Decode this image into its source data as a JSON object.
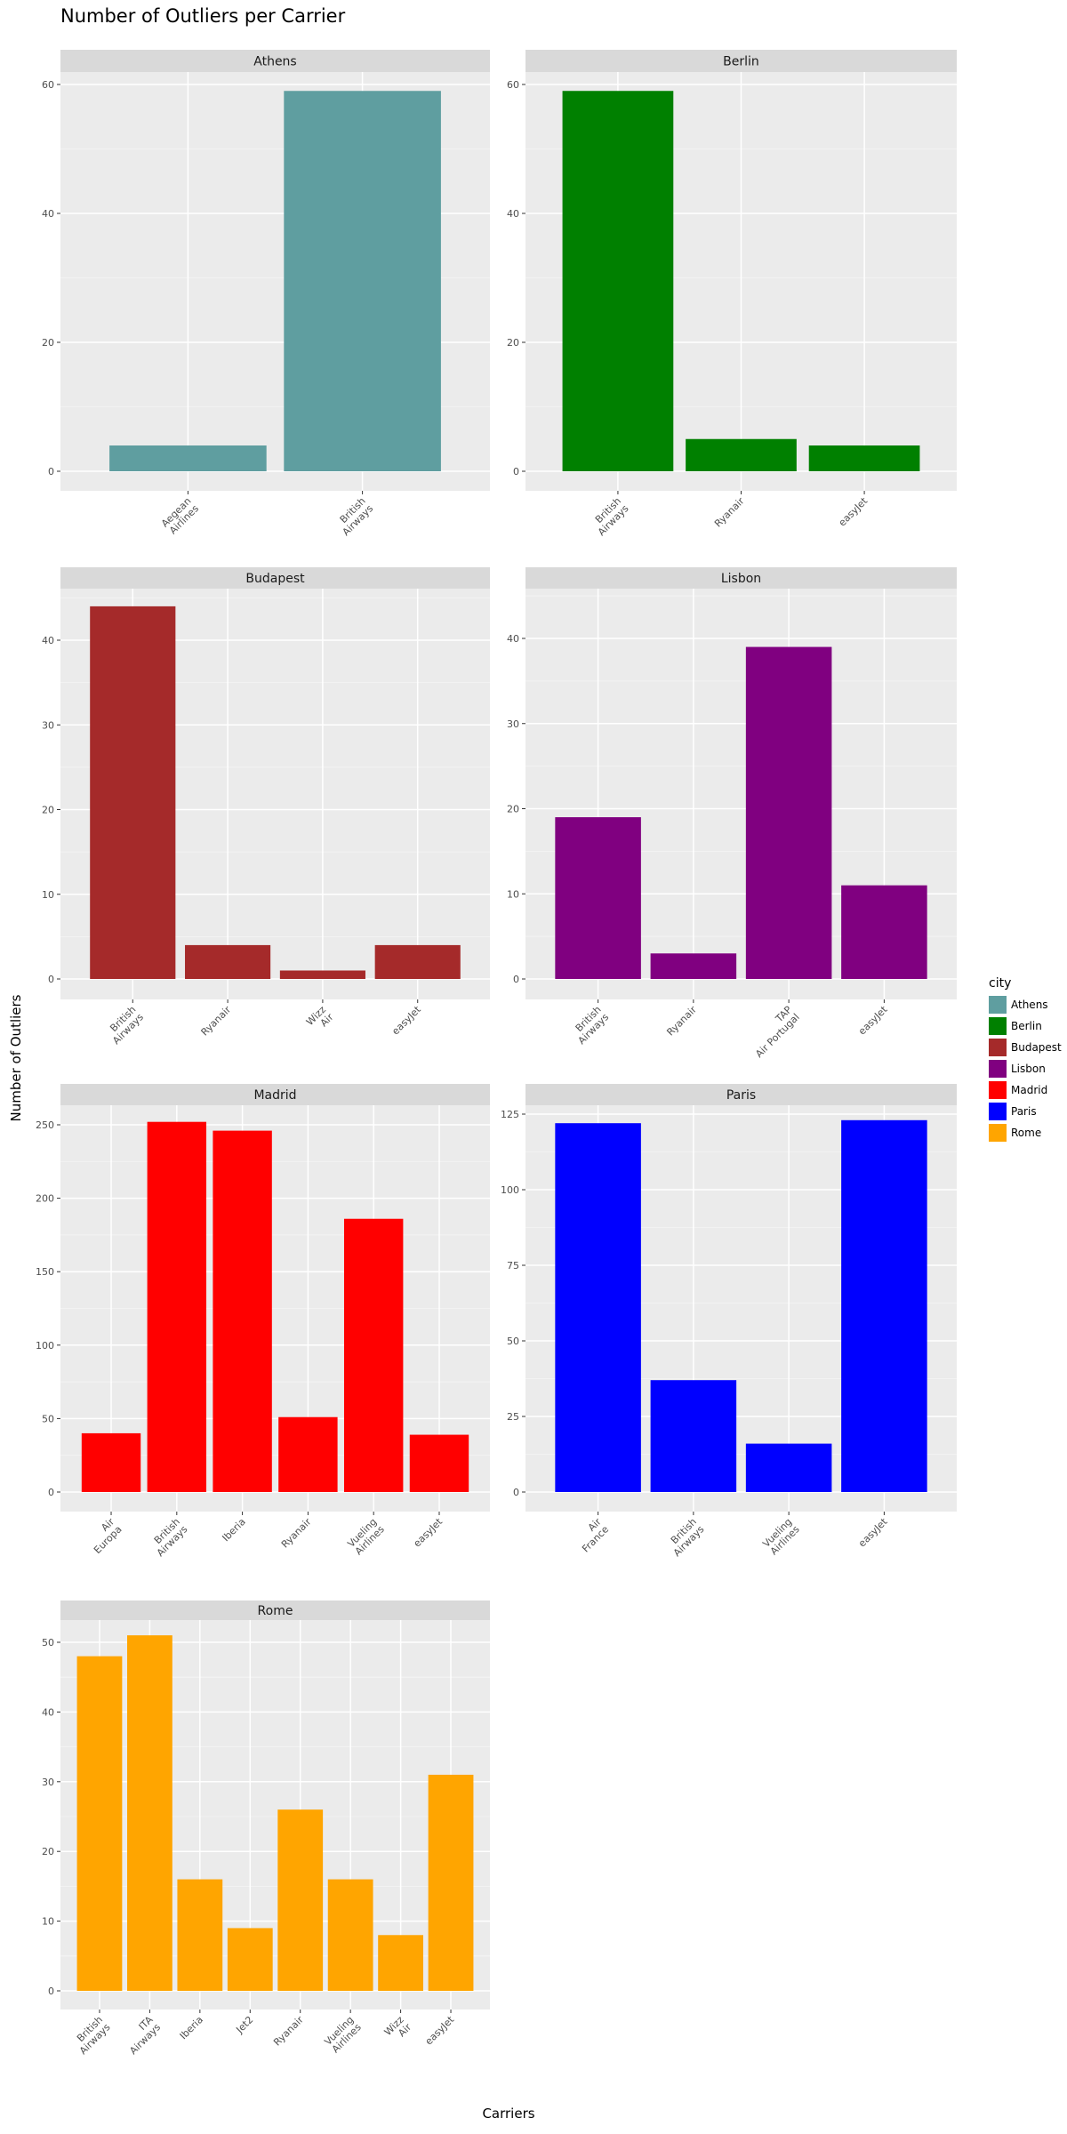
{
  "title": "Number of Outliers per Carrier",
  "xlabel": "Carriers",
  "ylabel": "Number of Outliers",
  "legend": {
    "title": "city",
    "items": [
      {
        "label": "Athens",
        "color": "#5f9ea0"
      },
      {
        "label": "Berlin",
        "color": "#008000"
      },
      {
        "label": "Budapest",
        "color": "#a52a2a"
      },
      {
        "label": "Lisbon",
        "color": "#800080"
      },
      {
        "label": "Madrid",
        "color": "#ff0000"
      },
      {
        "label": "Paris",
        "color": "#0000ff"
      },
      {
        "label": "Rome",
        "color": "#ffa500"
      }
    ]
  },
  "chart_data": {
    "type": "bar",
    "title": "Number of Outliers per Carrier",
    "xlabel": "Carriers",
    "ylabel": "Number of Outliers",
    "legend_position": "right",
    "grid": true,
    "facets": [
      {
        "city": "Athens",
        "color": "#5f9ea0",
        "categories": [
          "Aegean\nAirlines",
          "British\nAirways"
        ],
        "values": [
          4,
          59
        ],
        "yticks": [
          0,
          20,
          40,
          60
        ],
        "ylim": [
          0,
          62
        ]
      },
      {
        "city": "Berlin",
        "color": "#008000",
        "categories": [
          "British\nAirways",
          "Ryanair",
          "easyJet"
        ],
        "values": [
          59,
          5,
          4
        ],
        "yticks": [
          0,
          20,
          40,
          60
        ],
        "ylim": [
          0,
          62
        ]
      },
      {
        "city": "Budapest",
        "color": "#a52a2a",
        "categories": [
          "British\nAirways",
          "Ryanair",
          "Wizz\nAir",
          "easyJet"
        ],
        "values": [
          44,
          4,
          1,
          4
        ],
        "yticks": [
          0,
          10,
          20,
          30,
          40
        ],
        "ylim": [
          0,
          46
        ]
      },
      {
        "city": "Lisbon",
        "color": "#800080",
        "categories": [
          "British\nAirways",
          "Ryanair",
          "TAP\nAir Portugal",
          "easyJet"
        ],
        "values": [
          19,
          3,
          39,
          11
        ],
        "yticks": [
          0,
          10,
          20,
          30,
          40
        ],
        "ylim": [
          0,
          41
        ]
      },
      {
        "city": "Madrid",
        "color": "#ff0000",
        "categories": [
          "Air\nEuropa",
          "British\nAirways",
          "Iberia",
          "Ryanair",
          "Vueling\nAirlines",
          "easyJet"
        ],
        "values": [
          40,
          252,
          246,
          51,
          186,
          39
        ],
        "yticks": [
          0,
          50,
          100,
          150,
          200,
          250
        ],
        "ylim": [
          0,
          264
        ]
      },
      {
        "city": "Paris",
        "color": "#0000ff",
        "categories": [
          "Air\nFrance",
          "British\nAirways",
          "Vueling\nAirlines",
          "easyJet"
        ],
        "values": [
          122,
          37,
          16,
          123
        ],
        "yticks": [
          0,
          25,
          50,
          75,
          100,
          125
        ],
        "ylim": [
          0,
          129
        ]
      },
      {
        "city": "Rome",
        "color": "#ffa500",
        "categories": [
          "British\nAirways",
          "ITA\nAirways",
          "Iberia",
          "Jet2",
          "Ryanair",
          "Vueling\nAirlines",
          "Wizz\nAir",
          "easyJet"
        ],
        "values": [
          48,
          51,
          16,
          9,
          26,
          16,
          8,
          31
        ],
        "yticks": [
          0,
          10,
          20,
          30,
          40,
          50
        ],
        "ylim": [
          0,
          53
        ]
      }
    ]
  }
}
